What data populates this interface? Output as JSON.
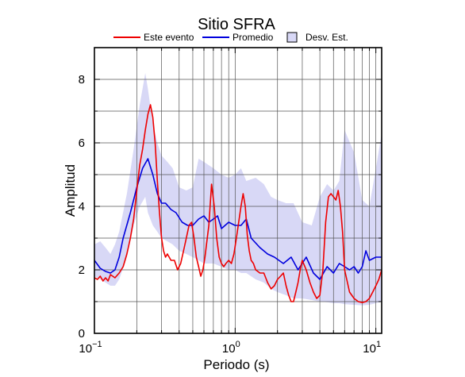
{
  "chart_data": {
    "type": "line",
    "title": "Sitio SFRA",
    "xlabel": "Periodo (s)",
    "ylabel": "Amplitud",
    "x_scale": "log",
    "xlim": [
      0.1,
      11
    ],
    "ylim": [
      0,
      9
    ],
    "x_ticks": [
      {
        "value": 0.1,
        "base": "10",
        "exp": "−1"
      },
      {
        "value": 1,
        "base": "10",
        "exp": "0"
      },
      {
        "value": 10,
        "base": "10",
        "exp": "1"
      }
    ],
    "y_ticks": [
      0,
      2,
      4,
      6,
      8
    ],
    "grid": true,
    "legend_position": "top",
    "legend": [
      {
        "label": "Este evento",
        "kind": "line",
        "color": "#ee0000"
      },
      {
        "label": "Promedio",
        "kind": "line",
        "color": "#0000dd"
      },
      {
        "label": "Desv. Est.",
        "kind": "box",
        "color": "#d8d8f6"
      }
    ],
    "band": {
      "name": "Desv. Est.",
      "color": "#d8d8f6",
      "x": [
        0.1,
        0.11,
        0.12,
        0.13,
        0.14,
        0.15,
        0.17,
        0.19,
        0.21,
        0.23,
        0.24,
        0.26,
        0.28,
        0.3,
        0.33,
        0.36,
        0.4,
        0.45,
        0.5,
        0.55,
        0.6,
        0.7,
        0.8,
        0.9,
        1.0,
        1.1,
        1.2,
        1.4,
        1.6,
        1.8,
        2.0,
        2.3,
        2.6,
        3.0,
        3.5,
        4.0,
        4.5,
        5.0,
        5.5,
        6.0,
        7.0,
        8.0,
        9.0,
        10.0,
        11.0
      ],
      "upper": [
        2.8,
        2.9,
        2.7,
        2.5,
        2.8,
        3.2,
        4.4,
        5.8,
        7.2,
        8.2,
        7.7,
        6.6,
        6.0,
        5.6,
        5.4,
        5.2,
        4.6,
        4.5,
        4.6,
        5.5,
        5.4,
        5.2,
        5.0,
        4.9,
        5.0,
        5.2,
        4.8,
        4.9,
        4.7,
        4.3,
        4.2,
        4.1,
        4.1,
        3.5,
        3.4,
        4.3,
        4.7,
        4.5,
        4.8,
        6.4,
        5.7,
        4.2,
        4.0,
        5.2,
        6.3
      ],
      "lower": [
        1.8,
        1.7,
        1.6,
        1.5,
        1.5,
        1.7,
        2.4,
        3.4,
        4.0,
        4.3,
        3.8,
        3.4,
        3.2,
        3.0,
        2.9,
        2.8,
        2.6,
        2.5,
        2.4,
        2.3,
        2.2,
        2.2,
        2.1,
        2.0,
        2.0,
        1.9,
        1.9,
        1.7,
        1.6,
        1.4,
        1.3,
        1.2,
        1.1,
        1.1,
        1.05,
        1.0,
        0.98,
        0.95,
        0.95,
        0.92,
        0.9,
        0.88,
        0.9,
        0.95,
        1.0
      ]
    },
    "series": [
      {
        "name": "Promedio",
        "color": "#0000dd",
        "x": [
          0.1,
          0.11,
          0.12,
          0.13,
          0.14,
          0.15,
          0.16,
          0.18,
          0.2,
          0.22,
          0.24,
          0.26,
          0.28,
          0.3,
          0.32,
          0.35,
          0.38,
          0.42,
          0.46,
          0.5,
          0.55,
          0.6,
          0.65,
          0.7,
          0.75,
          0.8,
          0.9,
          1.0,
          1.1,
          1.2,
          1.3,
          1.5,
          1.7,
          1.9,
          2.2,
          2.5,
          2.8,
          3.2,
          3.6,
          4.0,
          4.5,
          5.0,
          5.5,
          6.0,
          6.5,
          7.0,
          7.5,
          8.0,
          8.5,
          9.0,
          10.0,
          11.0
        ],
        "values": [
          2.3,
          2.05,
          1.95,
          1.9,
          2.0,
          2.4,
          3.0,
          3.8,
          4.6,
          5.2,
          5.5,
          5.0,
          4.4,
          4.1,
          4.1,
          3.9,
          3.8,
          3.5,
          3.4,
          3.4,
          3.6,
          3.7,
          3.5,
          3.6,
          3.7,
          3.3,
          3.5,
          3.4,
          3.4,
          3.6,
          3.0,
          2.7,
          2.5,
          2.4,
          2.2,
          2.4,
          2.0,
          2.4,
          1.9,
          1.7,
          2.1,
          1.9,
          2.2,
          2.1,
          2.0,
          2.1,
          1.9,
          2.1,
          2.6,
          2.3,
          2.4,
          2.4
        ]
      },
      {
        "name": "Este evento",
        "color": "#ee0000",
        "x": [
          0.1,
          0.105,
          0.11,
          0.115,
          0.12,
          0.125,
          0.13,
          0.14,
          0.15,
          0.16,
          0.17,
          0.18,
          0.19,
          0.2,
          0.21,
          0.22,
          0.23,
          0.24,
          0.25,
          0.26,
          0.27,
          0.28,
          0.29,
          0.3,
          0.31,
          0.32,
          0.33,
          0.35,
          0.37,
          0.39,
          0.41,
          0.43,
          0.45,
          0.47,
          0.49,
          0.51,
          0.53,
          0.55,
          0.57,
          0.59,
          0.61,
          0.63,
          0.65,
          0.68,
          0.71,
          0.74,
          0.77,
          0.8,
          0.83,
          0.86,
          0.9,
          0.94,
          0.98,
          1.02,
          1.06,
          1.1,
          1.14,
          1.18,
          1.22,
          1.26,
          1.3,
          1.35,
          1.4,
          1.5,
          1.6,
          1.7,
          1.8,
          1.9,
          2.0,
          2.1,
          2.2,
          2.3,
          2.4,
          2.5,
          2.6,
          2.7,
          2.8,
          2.9,
          3.0,
          3.2,
          3.4,
          3.6,
          3.8,
          4.0,
          4.2,
          4.4,
          4.6,
          4.8,
          5.0,
          5.2,
          5.4,
          5.6,
          5.8,
          6.0,
          6.5,
          7.0,
          7.5,
          8.0,
          8.5,
          9.0,
          9.5,
          10.0,
          10.5,
          11.0
        ],
        "values": [
          1.75,
          1.7,
          1.8,
          1.65,
          1.75,
          1.65,
          1.85,
          1.75,
          1.9,
          2.1,
          2.5,
          3.0,
          3.6,
          4.5,
          5.3,
          5.8,
          6.4,
          6.9,
          7.2,
          6.8,
          6.0,
          4.8,
          3.8,
          3.0,
          2.6,
          2.4,
          2.5,
          2.3,
          2.3,
          2.0,
          2.2,
          2.6,
          3.0,
          3.4,
          3.5,
          3.0,
          2.4,
          2.1,
          1.8,
          2.0,
          2.4,
          2.9,
          3.4,
          4.7,
          4.0,
          3.0,
          2.4,
          2.2,
          2.1,
          2.2,
          2.3,
          2.2,
          2.5,
          3.0,
          3.5,
          4.0,
          4.4,
          4.0,
          3.1,
          2.6,
          2.3,
          2.2,
          2.0,
          1.9,
          1.9,
          1.6,
          1.4,
          1.5,
          1.7,
          1.8,
          1.9,
          1.5,
          1.2,
          1.0,
          1.0,
          1.3,
          1.6,
          2.0,
          2.3,
          2.0,
          1.6,
          1.3,
          1.1,
          1.2,
          2.0,
          3.5,
          4.3,
          4.4,
          4.3,
          4.2,
          4.5,
          4.0,
          3.2,
          2.0,
          1.3,
          1.1,
          1.0,
          0.97,
          1.0,
          1.1,
          1.3,
          1.5,
          1.7,
          2.0
        ]
      }
    ]
  }
}
